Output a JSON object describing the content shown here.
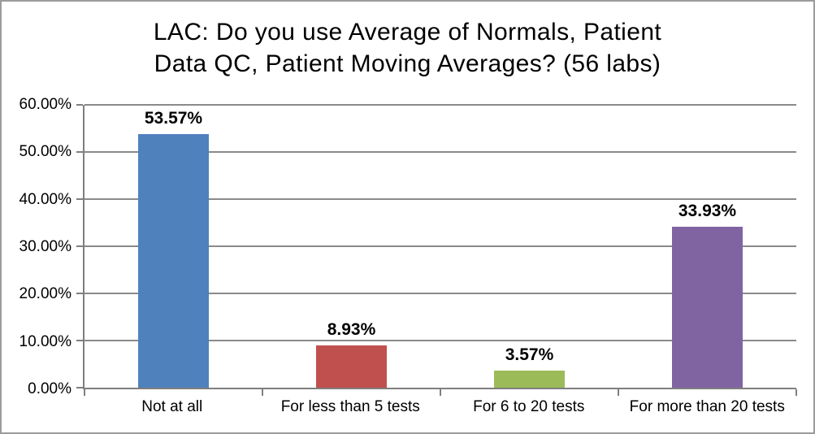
{
  "frame": {
    "background": "#ffffff",
    "border_color": "#9c9c9c"
  },
  "title": {
    "line1": "LAC: Do you use Average of Normals, Patient",
    "line2": "Data QC, Patient Moving Averages? (56 labs)"
  },
  "chart_data": {
    "type": "bar",
    "title": "LAC: Do you use Average of Normals, Patient Data QC, Patient Moving Averages? (56 labs)",
    "categories": [
      "Not at all",
      "For less than 5 tests",
      "For 6 to 20 tests",
      "For more than 20 tests"
    ],
    "values": [
      53.57,
      8.93,
      3.57,
      33.93
    ],
    "value_labels": [
      "53.57%",
      "8.93%",
      "3.57%",
      "33.93%"
    ],
    "bar_colors": [
      "#4F81BD",
      "#C0504D",
      "#9BBB59",
      "#8064A2"
    ],
    "xlabel": "",
    "ylabel": "",
    "ylim": [
      0,
      60
    ],
    "ytick_values": [
      0,
      10,
      20,
      30,
      40,
      50,
      60
    ],
    "ytick_labels": [
      "0.00%",
      "10.00%",
      "20.00%",
      "30.00%",
      "40.00%",
      "50.00%",
      "60.00%"
    ],
    "grid": "horizontal",
    "legend": "none",
    "gridline_color": "#8a8a8a",
    "axis_color": "#7f7f7f",
    "text_color": "#000000"
  }
}
